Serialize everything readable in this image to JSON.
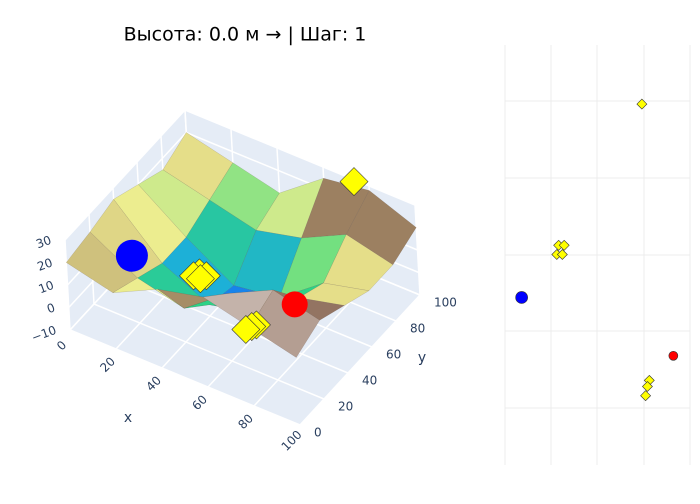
{
  "chart_data": {
    "type": "surface3d",
    "title": "Высота: 0.0 м → | Шаг: 1",
    "x_label": "x",
    "y_label": "y",
    "x": [
      0,
      20,
      40,
      60,
      80,
      100
    ],
    "y": [
      0,
      20,
      40,
      60,
      80,
      100
    ],
    "z": [
      [
        20,
        15,
        25,
        30,
        25,
        20
      ],
      [
        22,
        10,
        5,
        20,
        30,
        25
      ],
      [
        25,
        5,
        -5,
        0,
        15,
        20
      ],
      [
        20,
        5,
        -8,
        -5,
        10,
        15
      ],
      [
        15,
        10,
        5,
        10,
        20,
        15
      ],
      [
        20,
        15,
        10,
        25,
        28,
        20
      ]
    ],
    "xlim": [
      0,
      100
    ],
    "ylim": [
      0,
      100
    ],
    "zlim": [
      -10,
      30
    ],
    "xticks": [
      0,
      20,
      40,
      60,
      80,
      100
    ],
    "yticks": [
      0,
      20,
      40,
      60,
      80,
      100
    ],
    "zticks": [
      {
        "value": -10,
        "label": "−10"
      },
      0,
      10,
      20,
      30
    ],
    "colorscale": [
      "#1030f0",
      "#1aa8e8",
      "#30d878",
      "#f2ee90",
      "#8c6c58",
      "#f6f2f2"
    ],
    "agent": {
      "x": 9,
      "y": 36,
      "z": 6,
      "color": "#0000ff"
    },
    "goal": {
      "x": 91,
      "y": 17,
      "z": 30,
      "color": "#ff0000"
    },
    "obstacles": {
      "color": "#ffff00",
      "x": [
        74,
        29,
        32,
        28,
        31,
        78,
        77,
        76
      ],
      "y": [
        99,
        53,
        53,
        50,
        50,
        9,
        7,
        4
      ],
      "z": [
        30,
        -3,
        -3,
        -3,
        -3,
        20,
        20,
        20
      ]
    }
  }
}
